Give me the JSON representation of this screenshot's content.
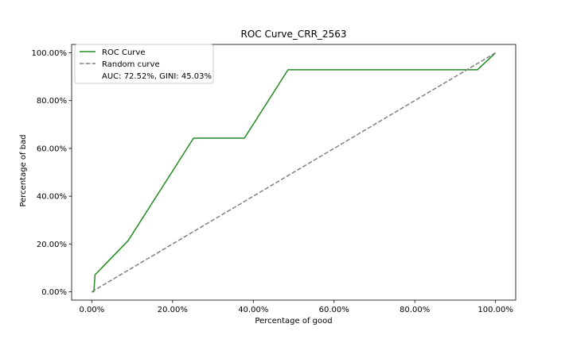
{
  "chart_data": {
    "type": "line",
    "title": "ROC Curve_CRR_2563",
    "xlabel": "Percentage of good",
    "ylabel": "Percentage of bad",
    "xlim": [
      -0.05,
      1.05
    ],
    "ylim": [
      -0.035,
      1.035
    ],
    "xticks": [
      0.0,
      0.2,
      0.4,
      0.6,
      0.8,
      1.0
    ],
    "xtick_labels": [
      "0.00%",
      "20.00%",
      "40.00%",
      "60.00%",
      "80.00%",
      "100.00%"
    ],
    "yticks": [
      0.0,
      0.2,
      0.4,
      0.6,
      0.8,
      1.0
    ],
    "ytick_labels": [
      "0.00%",
      "20.00%",
      "40.00%",
      "60.00%",
      "80.00%",
      "100.00%"
    ],
    "grid": false,
    "legend_position": "upper-left",
    "series": [
      {
        "name": "ROC Curve",
        "color": "#228B22",
        "style": "solid",
        "x": [
          0.0,
          0.005,
          0.008,
          0.09,
          0.252,
          0.378,
          0.486,
          0.955,
          1.0
        ],
        "y": [
          0.0,
          0.0,
          0.071,
          0.214,
          0.643,
          0.643,
          0.929,
          0.929,
          1.0
        ]
      },
      {
        "name": "Random curve",
        "color": "#808080",
        "style": "dashed",
        "x": [
          0.0,
          1.0
        ],
        "y": [
          0.0,
          1.0
        ]
      }
    ],
    "legend_extra": "AUC: 72.52%, GINI: 45.03%"
  }
}
